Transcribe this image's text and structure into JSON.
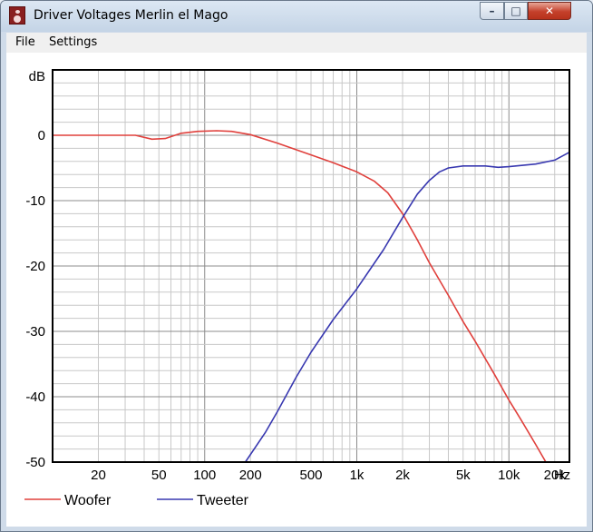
{
  "window": {
    "title": "Driver Voltages Merlin el Mago",
    "min_glyph": "–",
    "max_glyph": "□",
    "close_glyph": "✕"
  },
  "menu": [
    {
      "label": "File"
    },
    {
      "label": "Settings"
    }
  ],
  "chart_data": {
    "type": "line",
    "ylabel": "dB",
    "xlabel": "Hz",
    "x_scale": "log",
    "xlim": [
      10,
      25000
    ],
    "ylim": [
      -50,
      10
    ],
    "grid": true,
    "legend_position": "bottom",
    "x_tick_labels": [
      {
        "value": 20,
        "label": "20"
      },
      {
        "value": 50,
        "label": "50"
      },
      {
        "value": 100,
        "label": "100"
      },
      {
        "value": 200,
        "label": "200"
      },
      {
        "value": 500,
        "label": "500"
      },
      {
        "value": 1000,
        "label": "1k"
      },
      {
        "value": 2000,
        "label": "2k"
      },
      {
        "value": 5000,
        "label": "5k"
      },
      {
        "value": 10000,
        "label": "10k"
      },
      {
        "value": 20000,
        "label": "20k"
      }
    ],
    "y_tick_labels": [
      {
        "value": 0,
        "label": "0"
      },
      {
        "value": -10,
        "label": "-10"
      },
      {
        "value": -20,
        "label": "-20"
      },
      {
        "value": -30,
        "label": "-30"
      },
      {
        "value": -40,
        "label": "-40"
      },
      {
        "value": -50,
        "label": "-50"
      }
    ],
    "series": [
      {
        "name": "Woofer",
        "color": "#e0403c",
        "points": [
          [
            10,
            0
          ],
          [
            20,
            0
          ],
          [
            35,
            0
          ],
          [
            45,
            -0.6
          ],
          [
            55,
            -0.5
          ],
          [
            70,
            0.3
          ],
          [
            90,
            0.6
          ],
          [
            120,
            0.7
          ],
          [
            150,
            0.6
          ],
          [
            200,
            0.1
          ],
          [
            300,
            -1.2
          ],
          [
            500,
            -3.0
          ],
          [
            700,
            -4.2
          ],
          [
            1000,
            -5.6
          ],
          [
            1300,
            -7.0
          ],
          [
            1600,
            -8.8
          ],
          [
            2000,
            -12.0
          ],
          [
            2500,
            -16.0
          ],
          [
            3000,
            -19.5
          ],
          [
            4000,
            -24.5
          ],
          [
            5000,
            -28.5
          ],
          [
            6000,
            -31.5
          ],
          [
            8000,
            -36.5
          ],
          [
            10000,
            -40.5
          ],
          [
            12000,
            -43.5
          ],
          [
            15000,
            -47.3
          ],
          [
            17500,
            -50
          ]
        ]
      },
      {
        "name": "Tweeter",
        "color": "#3838b0",
        "points": [
          [
            185,
            -50
          ],
          [
            250,
            -45.5
          ],
          [
            300,
            -42.3
          ],
          [
            400,
            -37.0
          ],
          [
            500,
            -33.2
          ],
          [
            700,
            -28.2
          ],
          [
            1000,
            -23.5
          ],
          [
            1500,
            -17.5
          ],
          [
            2000,
            -12.6
          ],
          [
            2500,
            -9.0
          ],
          [
            3000,
            -6.9
          ],
          [
            3500,
            -5.6
          ],
          [
            4000,
            -5.0
          ],
          [
            5000,
            -4.7
          ],
          [
            7000,
            -4.7
          ],
          [
            8500,
            -4.9
          ],
          [
            10000,
            -4.8
          ],
          [
            15000,
            -4.4
          ],
          [
            20000,
            -3.8
          ],
          [
            25000,
            -2.6
          ]
        ]
      }
    ]
  }
}
